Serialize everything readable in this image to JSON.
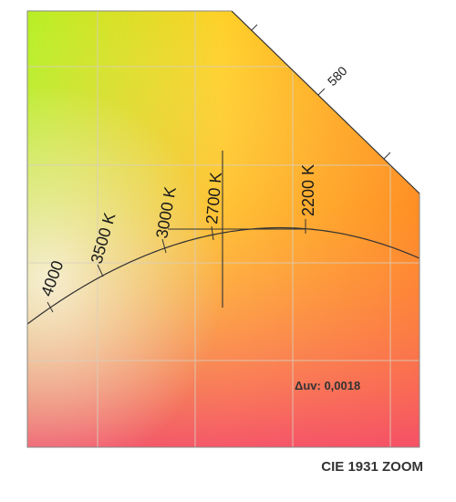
{
  "caption": "CIE 1931 ZOOM",
  "delta_uv": "Δuv: 0,0018",
  "wavelength_label": "580",
  "cct_labels": {
    "k4000": "4000",
    "k3500": "3500 K",
    "k3000": "3000 K",
    "k2700": "2700 K",
    "k2200": "2200 K"
  },
  "colors": {
    "top_left": "#c8f020",
    "top_right": "#ff9a10",
    "bottom_left": "#f87aa0",
    "bottom_right": "#f23c48",
    "line": "#333333",
    "grid": "#d8d0c0"
  }
}
